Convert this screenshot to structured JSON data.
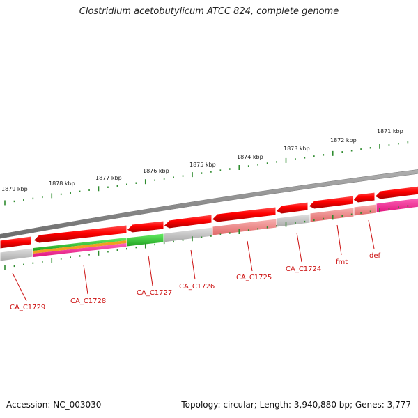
{
  "title": "Clostridium acetobutylicum ATCC 824, complete genome",
  "footer": {
    "accession": "Accession: NC_003030",
    "summary": "Topology: circular; Length: 3,940,880 bp; Genes: 3,777"
  },
  "kbp_labels": [
    "1879 kbp",
    "1878 kbp",
    "1877 kbp",
    "1876 kbp",
    "1875 kbp",
    "1874 kbp",
    "1873 kbp",
    "1872 kbp",
    "1871 kbp"
  ],
  "gene_labels": [
    "CA_C1729",
    "CA_C1728",
    "CA_C1727",
    "CA_C1726",
    "CA_C1725",
    "CA_C1724",
    "fmt",
    "def"
  ],
  "colors": {
    "backbone": "#8a8a8a",
    "strand_red": "#e00000",
    "light_red": "#f08a8a",
    "gray": "#c4c4c4",
    "green": "#33cc33",
    "pink": "#ff3399",
    "tick_green": "#2e8b2e",
    "label_red": "#cc1111"
  }
}
